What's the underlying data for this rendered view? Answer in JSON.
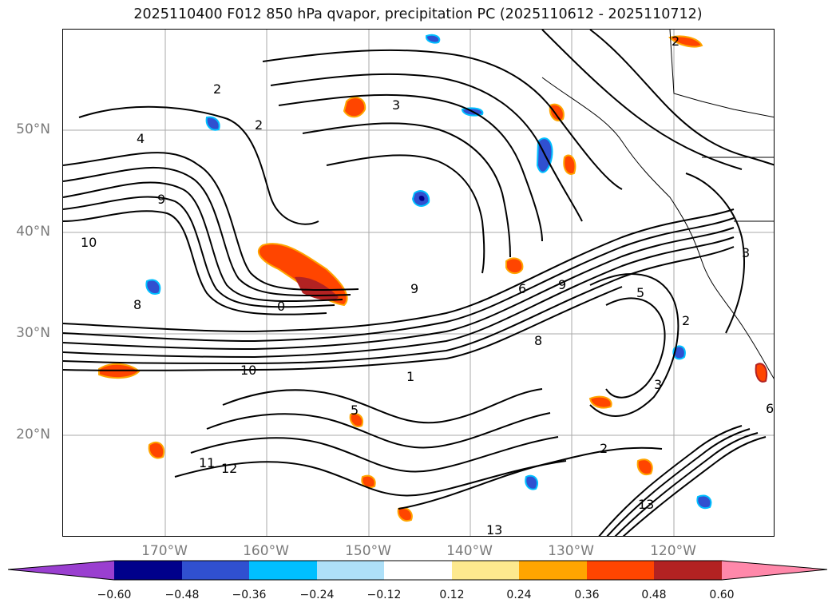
{
  "title": "2025110400 F012 850 hPa qvapor, precipitation PC (2025110612 - 2025110712)",
  "lat_labels": [
    "50°N",
    "40°N",
    "30°N",
    "20°N"
  ],
  "lon_labels": [
    "170°W",
    "160°W",
    "150°W",
    "140°W",
    "130°W",
    "120°W"
  ],
  "colorbar": {
    "ticks": [
      "−0.60",
      "−0.48",
      "−0.36",
      "−0.24",
      "−0.12",
      "0.12",
      "0.24",
      "0.36",
      "0.48",
      "0.60"
    ],
    "colors": [
      "#9a3fd0",
      "#00008b",
      "#3050d0",
      "#00bfff",
      "#aee0f8",
      "#ffffff",
      "#fde98e",
      "#ffa500",
      "#ff4500",
      "#b22222",
      "#ff88aa"
    ]
  },
  "contour_labels": [
    "2",
    "3",
    "2",
    "4",
    "9",
    "10",
    "0",
    "8",
    "9",
    "2",
    "1",
    "6",
    "9",
    "5",
    "3",
    "2",
    "8",
    "10",
    "12",
    "11",
    "13",
    "2",
    "13",
    "6",
    "5",
    "3"
  ]
}
